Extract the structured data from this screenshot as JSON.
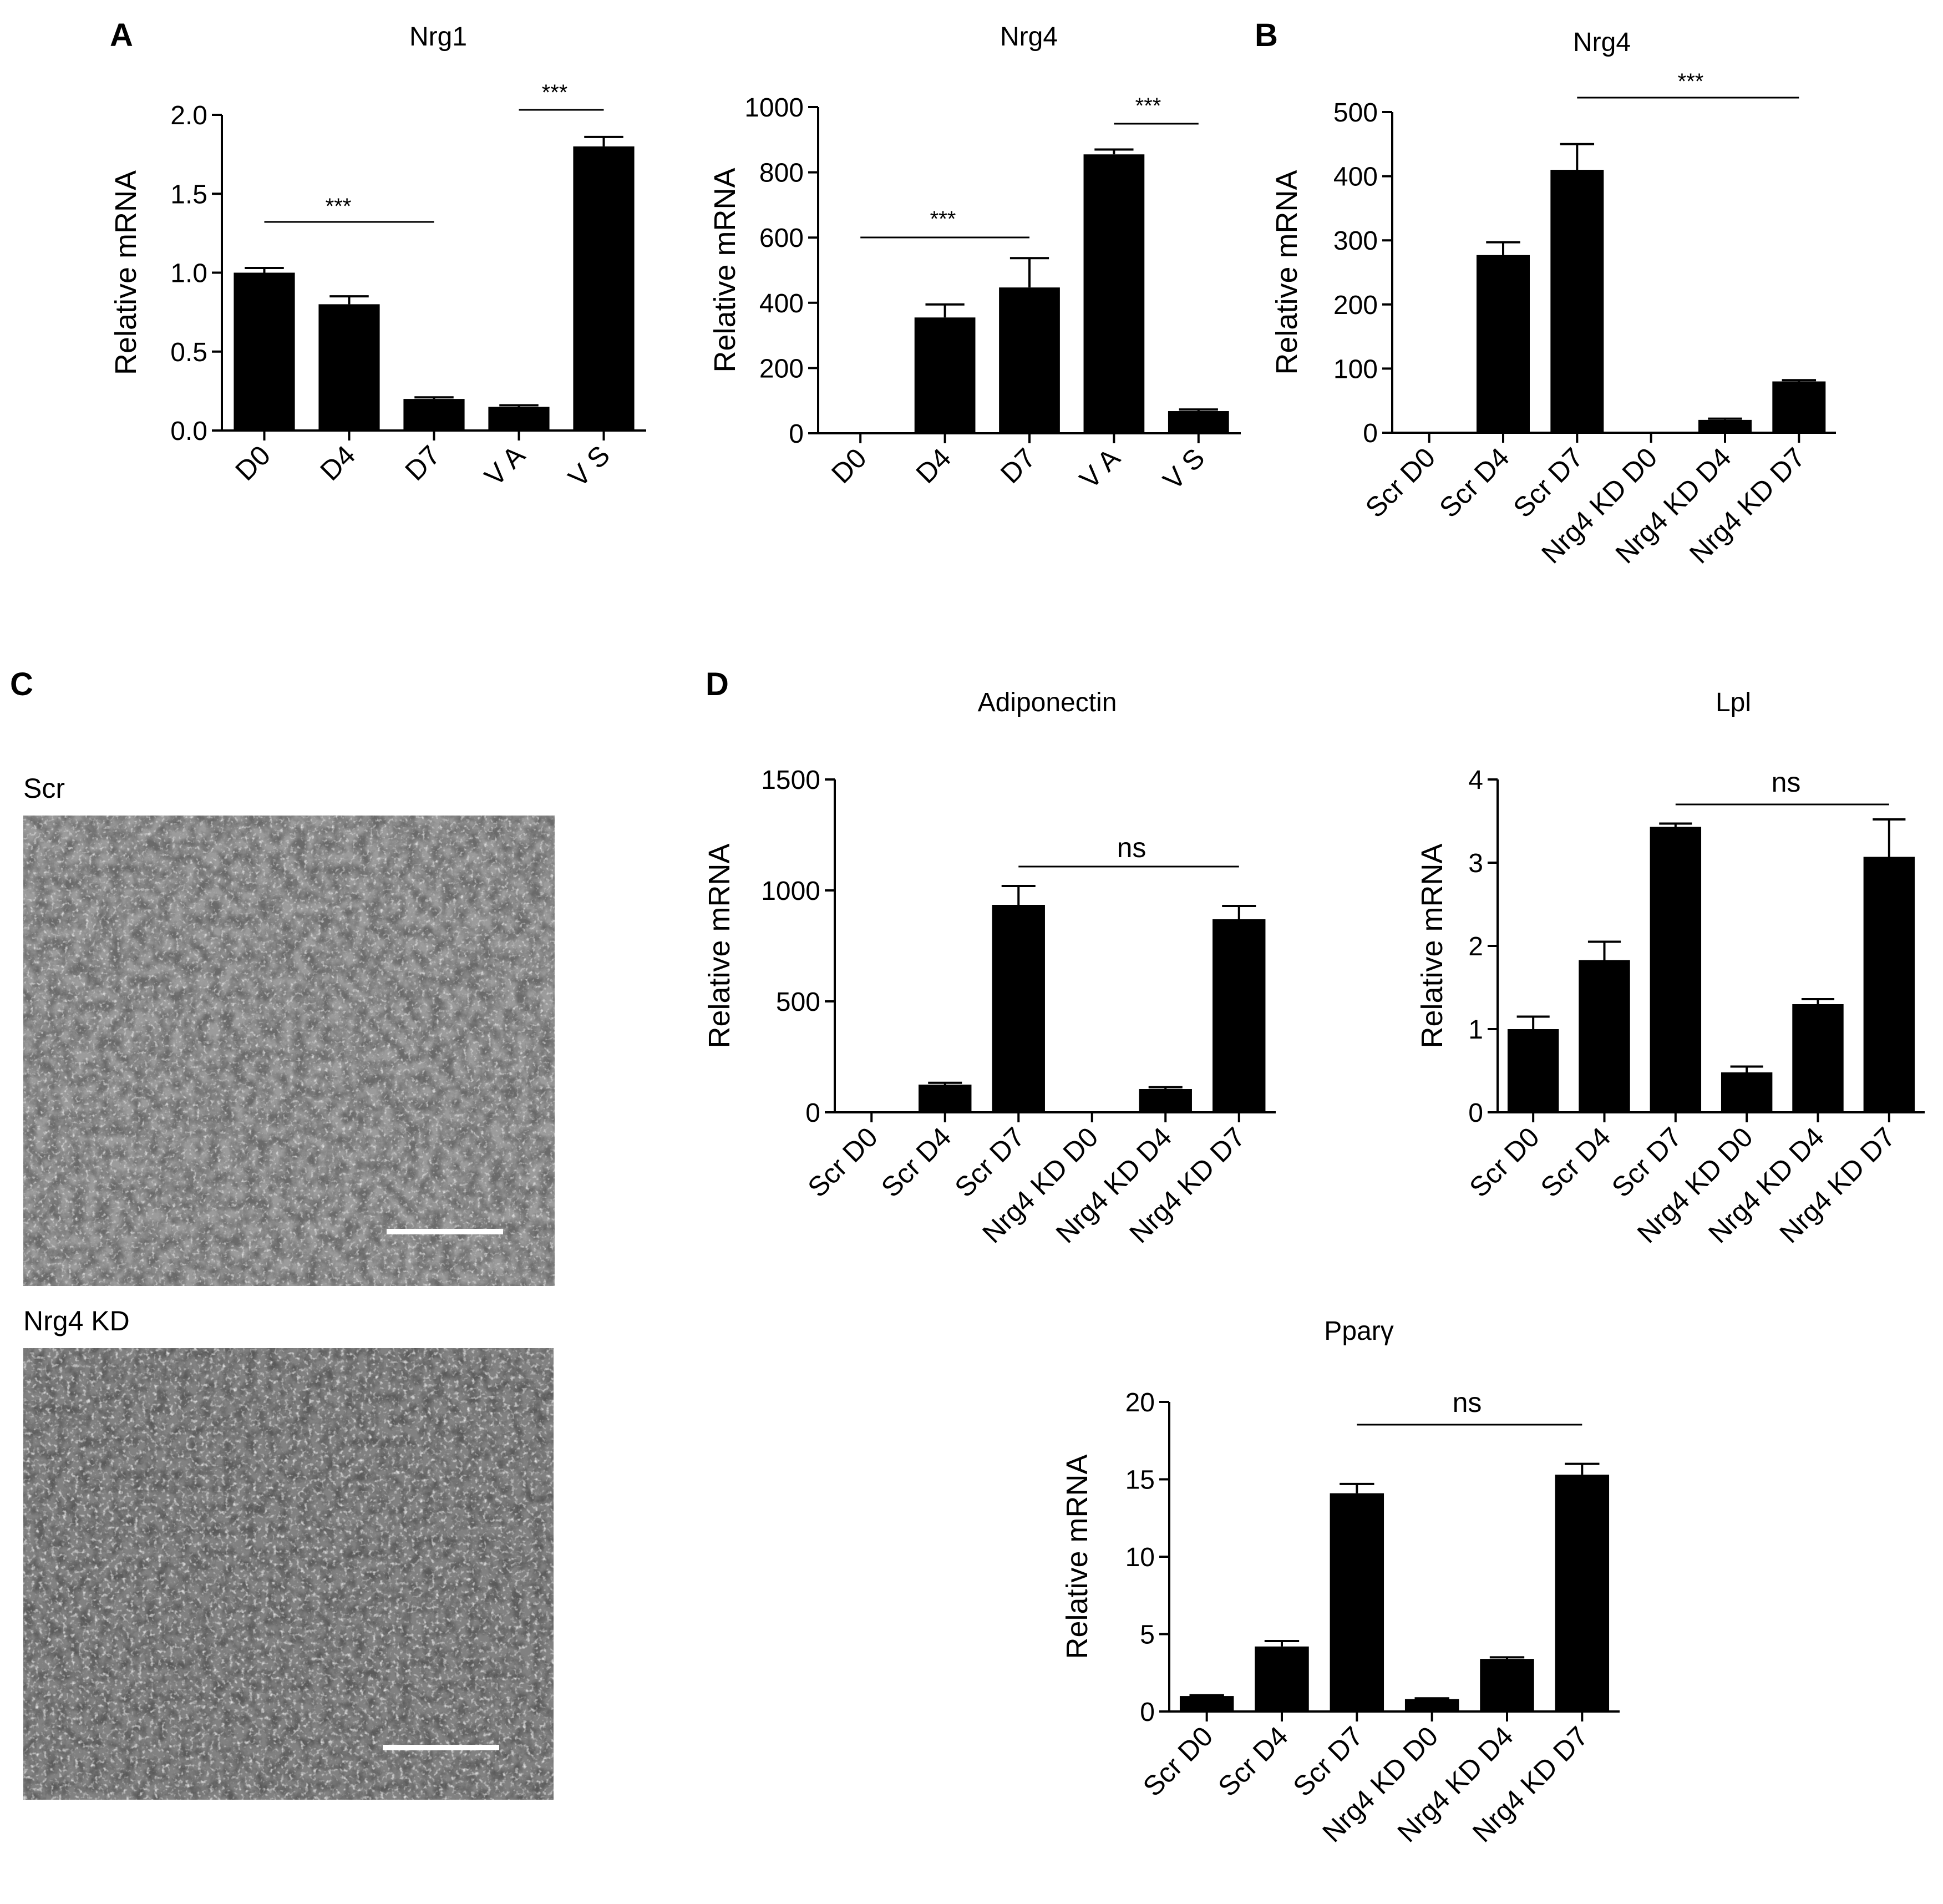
{
  "panels": {
    "A": "A",
    "B": "B",
    "C": "C",
    "D": "D"
  },
  "micrographs": [
    {
      "label": "Scr"
    },
    {
      "label": "Nrg4 KD"
    }
  ],
  "chart_data": [
    {
      "type": "bar",
      "panel": "A",
      "title": "Nrg1",
      "ylabel": "Relative mRNA",
      "xlabel": "",
      "categories": [
        "D0",
        "D4",
        "D7",
        "V A",
        "V S"
      ],
      "values": [
        1.0,
        0.8,
        0.2,
        0.15,
        1.8
      ],
      "errors": [
        0.03,
        0.05,
        0.01,
        0.01,
        0.06
      ],
      "ylim": [
        0,
        2.0
      ],
      "yticks": [
        "0.0",
        "0.5",
        "1.0",
        "1.5",
        "2.0"
      ],
      "annotations": [
        {
          "from": "D0",
          "to": "D7",
          "text": "***"
        },
        {
          "from": "V A",
          "to": "V S",
          "text": "***"
        }
      ]
    },
    {
      "type": "bar",
      "panel": "A",
      "title": "Nrg4",
      "ylabel": "Relative mRNA",
      "xlabel": "",
      "categories": [
        "D0",
        "D4",
        "D7",
        "V A",
        "V S"
      ],
      "values": [
        1,
        355,
        447,
        855,
        68
      ],
      "errors": [
        0,
        40,
        90,
        15,
        5
      ],
      "ylim": [
        0,
        1000
      ],
      "yticks": [
        "0",
        "200",
        "400",
        "600",
        "800",
        "1000"
      ],
      "annotations": [
        {
          "from": "D0",
          "to": "D7",
          "text": "***"
        },
        {
          "from": "V A",
          "to": "V S",
          "text": "***"
        }
      ]
    },
    {
      "type": "bar",
      "panel": "B",
      "title": "Nrg4",
      "ylabel": "Relative mRNA",
      "xlabel": "",
      "categories": [
        "Scr D0",
        "Scr D4",
        "Scr D7",
        "Nrg4 KD D0",
        "Nrg4 KD D4",
        "Nrg4 KD D7"
      ],
      "values": [
        1,
        277,
        410,
        1,
        20,
        80
      ],
      "errors": [
        0,
        20,
        40,
        0,
        2,
        2
      ],
      "ylim": [
        0,
        500
      ],
      "yticks": [
        "0",
        "100",
        "200",
        "300",
        "400",
        "500"
      ],
      "annotations": [
        {
          "from": "Scr D7",
          "to": "Nrg4 KD D7",
          "text": "***"
        }
      ]
    },
    {
      "type": "bar",
      "panel": "D",
      "title": "Adiponectin",
      "ylabel": "Relative mRNA",
      "xlabel": "",
      "categories": [
        "Scr D0",
        "Scr D4",
        "Scr D7",
        "Nrg4 KD D0",
        "Nrg4 KD D4",
        "Nrg4 KD D7"
      ],
      "values": [
        1,
        125,
        935,
        1,
        105,
        870
      ],
      "errors": [
        0,
        8,
        85,
        0,
        8,
        60
      ],
      "ylim": [
        0,
        1500
      ],
      "yticks": [
        "0",
        "500",
        "1000",
        "1500"
      ],
      "annotations": [
        {
          "from": "Scr D7",
          "to": "Nrg4 KD D7",
          "text": "ns"
        }
      ]
    },
    {
      "type": "bar",
      "panel": "D",
      "title": "Lpl",
      "ylabel": "Relative mRNA",
      "xlabel": "",
      "categories": [
        "Scr D0",
        "Scr D4",
        "Scr D7",
        "Nrg4 KD D0",
        "Nrg4 KD D4",
        "Nrg4 KD D7"
      ],
      "values": [
        1.0,
        1.83,
        3.43,
        0.48,
        1.3,
        3.07
      ],
      "errors": [
        0.15,
        0.22,
        0.04,
        0.07,
        0.06,
        0.45
      ],
      "ylim": [
        0,
        4
      ],
      "yticks": [
        "0",
        "1",
        "2",
        "3",
        "4"
      ],
      "annotations": [
        {
          "from": "Scr D7",
          "to": "Nrg4 KD D7",
          "text": "ns"
        }
      ]
    },
    {
      "type": "bar",
      "panel": "D",
      "title": "Pparγ",
      "ylabel": "Relative mRNA",
      "xlabel": "",
      "categories": [
        "Scr D0",
        "Scr D4",
        "Scr D7",
        "Nrg4 KD D0",
        "Nrg4 KD D4",
        "Nrg4 KD D7"
      ],
      "values": [
        1.0,
        4.2,
        14.1,
        0.8,
        3.4,
        15.3
      ],
      "errors": [
        0.05,
        0.35,
        0.6,
        0.05,
        0.1,
        0.7
      ],
      "ylim": [
        0,
        20
      ],
      "yticks": [
        "0",
        "5",
        "10",
        "15",
        "20"
      ],
      "annotations": [
        {
          "from": "Scr D7",
          "to": "Nrg4 KD D7",
          "text": "ns"
        }
      ]
    }
  ]
}
